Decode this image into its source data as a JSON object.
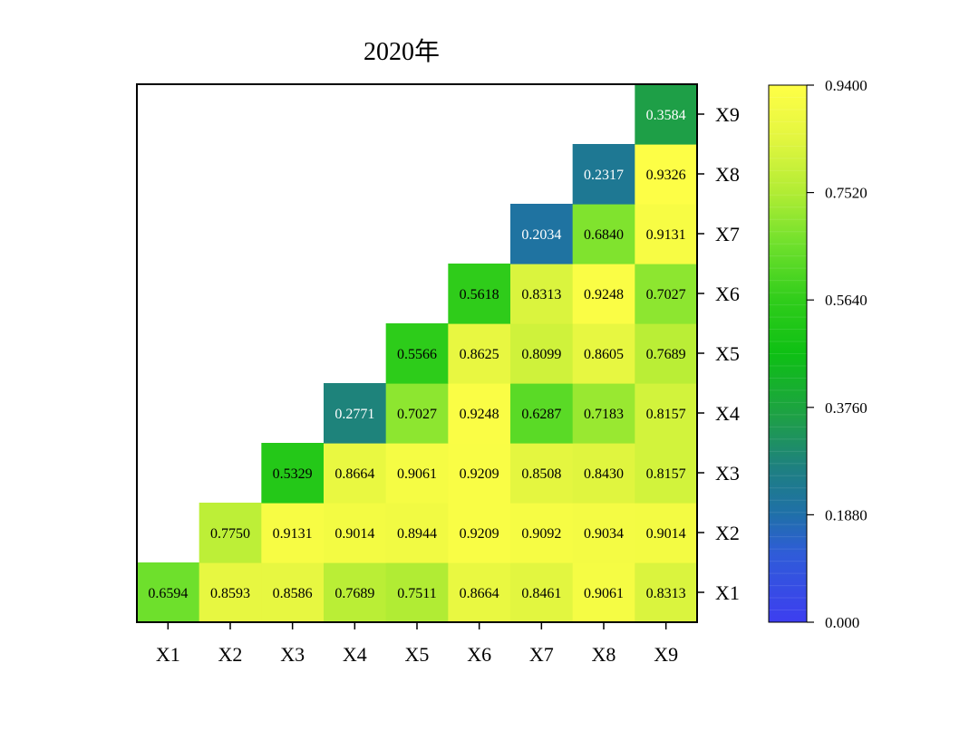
{
  "chart_data": {
    "type": "heatmap",
    "title": "2020年",
    "x_categories": [
      "X1",
      "X2",
      "X3",
      "X4",
      "X5",
      "X6",
      "X7",
      "X8",
      "X9"
    ],
    "y_categories": [
      "X1",
      "X2",
      "X3",
      "X4",
      "X5",
      "X6",
      "X7",
      "X8",
      "X9"
    ],
    "matrix": [
      [
        "0.6594",
        "0.8593",
        "0.8586",
        "0.7689",
        "0.7511",
        "0.8664",
        "0.8461",
        "0.9061",
        "0.8313"
      ],
      [
        null,
        "0.7750",
        "0.9131",
        "0.9014",
        "0.8944",
        "0.9209",
        "0.9092",
        "0.9034",
        "0.9014"
      ],
      [
        null,
        null,
        "0.5329",
        "0.8664",
        "0.9061",
        "0.9209",
        "0.8508",
        "0.8430",
        "0.8157"
      ],
      [
        null,
        null,
        null,
        "0.2771",
        "0.7027",
        "0.9248",
        "0.6287",
        "0.7183",
        "0.8157"
      ],
      [
        null,
        null,
        null,
        null,
        "0.5566",
        "0.8625",
        "0.8099",
        "0.8605",
        "0.7689"
      ],
      [
        null,
        null,
        null,
        null,
        null,
        "0.5618",
        "0.8313",
        "0.9248",
        "0.7027"
      ],
      [
        null,
        null,
        null,
        null,
        null,
        null,
        "0.2034",
        "0.6840",
        "0.9131"
      ],
      [
        null,
        null,
        null,
        null,
        null,
        null,
        null,
        "0.2317",
        "0.9326"
      ],
      [
        null,
        null,
        null,
        null,
        null,
        null,
        null,
        null,
        "0.3584"
      ]
    ],
    "colorbar": {
      "min": 0,
      "max": 0.94,
      "tick_values": [
        0,
        0.188,
        0.376,
        0.564,
        0.752,
        0.94
      ],
      "tick_labels": [
        "0.000",
        "0.1880",
        "0.3760",
        "0.5640",
        "0.7520",
        "0.9400"
      ],
      "color_stops": [
        {
          "v": 0.0,
          "c": "#3d3ef0"
        },
        {
          "v": 0.12,
          "c": "#2f5cd8"
        },
        {
          "v": 0.19,
          "c": "#1f70a8"
        },
        {
          "v": 0.27,
          "c": "#1e8080"
        },
        {
          "v": 0.36,
          "c": "#1ea046"
        },
        {
          "v": 0.47,
          "c": "#0ec014"
        },
        {
          "v": 0.56,
          "c": "#2ecc1a"
        },
        {
          "v": 0.66,
          "c": "#6ee02c"
        },
        {
          "v": 0.75,
          "c": "#b0ec34"
        },
        {
          "v": 0.85,
          "c": "#e4f640"
        },
        {
          "v": 0.94,
          "c": "#ffff46"
        }
      ],
      "legend_placement": "right"
    }
  }
}
